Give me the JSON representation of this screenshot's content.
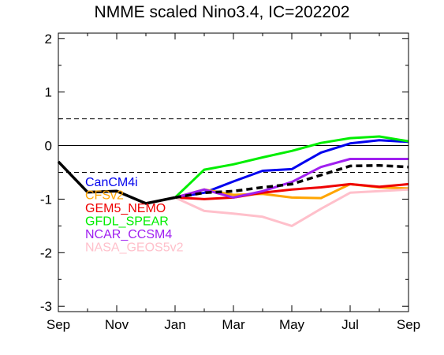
{
  "chart_data": {
    "type": "line",
    "title": "NMME scaled Nino3.4, IC=202202",
    "xlabel": "",
    "ylabel": "",
    "ylim": [
      -3.1,
      2.1
    ],
    "x_tick_labels": [
      "Sep",
      "Nov",
      "Jan",
      "Mar",
      "May",
      "Jul",
      "Sep"
    ],
    "y_tick_labels": [
      "-3",
      "-2",
      "-1",
      "0",
      "1",
      "2"
    ],
    "y_ticks": [
      -3,
      -2,
      -1,
      0,
      1,
      2
    ],
    "reference_lines": [
      {
        "y": 0.5,
        "style": "dashed"
      },
      {
        "y": 0,
        "style": "solid"
      },
      {
        "y": -0.5,
        "style": "dashed"
      }
    ],
    "observed": {
      "color": "#000000",
      "x": [
        "2021-09",
        "2021-10",
        "2021-11",
        "2021-12",
        "2022-01"
      ],
      "values": [
        -0.3,
        -0.87,
        -0.85,
        -1.08,
        -0.97
      ]
    },
    "series": [
      {
        "name": "CanCM4i",
        "color": "#0000ee",
        "x": [
          "2022-01",
          "2022-02",
          "2022-03",
          "2022-04",
          "2022-05",
          "2022-06",
          "2022-07",
          "2022-08",
          "2022-09"
        ],
        "values": [
          -0.97,
          -0.88,
          -0.67,
          -0.47,
          -0.44,
          -0.13,
          0.04,
          0.1,
          0.07
        ]
      },
      {
        "name": "CFSv2",
        "color": "#ffa500",
        "x": [
          "2022-01",
          "2022-02",
          "2022-03",
          "2022-04",
          "2022-05",
          "2022-06",
          "2022-07",
          "2022-08",
          "2022-09"
        ],
        "values": [
          -0.97,
          -0.82,
          -0.92,
          -0.9,
          -0.97,
          -0.98,
          -0.72,
          -0.78,
          -0.8
        ]
      },
      {
        "name": "GEM5_NEMO",
        "color": "#ee0000",
        "x": [
          "2022-01",
          "2022-02",
          "2022-03",
          "2022-04",
          "2022-05",
          "2022-06",
          "2022-07",
          "2022-08",
          "2022-09"
        ],
        "values": [
          -0.97,
          -1.0,
          -0.97,
          -0.88,
          -0.82,
          -0.78,
          -0.72,
          -0.77,
          -0.72
        ]
      },
      {
        "name": "GFDL_SPEAR",
        "color": "#00ee00",
        "x": [
          "2022-01",
          "2022-02",
          "2022-03",
          "2022-04",
          "2022-05",
          "2022-06",
          "2022-07",
          "2022-08",
          "2022-09"
        ],
        "values": [
          -0.97,
          -0.45,
          -0.35,
          -0.22,
          -0.1,
          0.05,
          0.14,
          0.17,
          0.08
        ]
      },
      {
        "name": "NCAR_CCSM4",
        "color": "#a020f0",
        "x": [
          "2022-01",
          "2022-02",
          "2022-03",
          "2022-04",
          "2022-05",
          "2022-06",
          "2022-07",
          "2022-08",
          "2022-09"
        ],
        "values": [
          -0.97,
          -0.82,
          -0.97,
          -0.85,
          -0.68,
          -0.4,
          -0.25,
          -0.25,
          -0.25
        ]
      },
      {
        "name": "NASA_GEOS5v2",
        "color": "#ffc0cb",
        "x": [
          "2022-01",
          "2022-02",
          "2022-03",
          "2022-04",
          "2022-05",
          "2022-06",
          "2022-07",
          "2022-08",
          "2022-09"
        ],
        "values": [
          -0.97,
          -1.22,
          -1.27,
          -1.33,
          -1.5,
          -1.18,
          -0.88,
          -0.85,
          -0.82
        ]
      }
    ],
    "ensemble_mean": {
      "color": "#000000",
      "style": "dashed",
      "x": [
        "2022-01",
        "2022-02",
        "2022-03",
        "2022-04",
        "2022-05",
        "2022-06",
        "2022-07",
        "2022-08",
        "2022-09"
      ],
      "values": [
        -0.97,
        -0.88,
        -0.85,
        -0.78,
        -0.72,
        -0.55,
        -0.38,
        -0.37,
        -0.4
      ]
    },
    "legend_placement": "lower-left"
  }
}
